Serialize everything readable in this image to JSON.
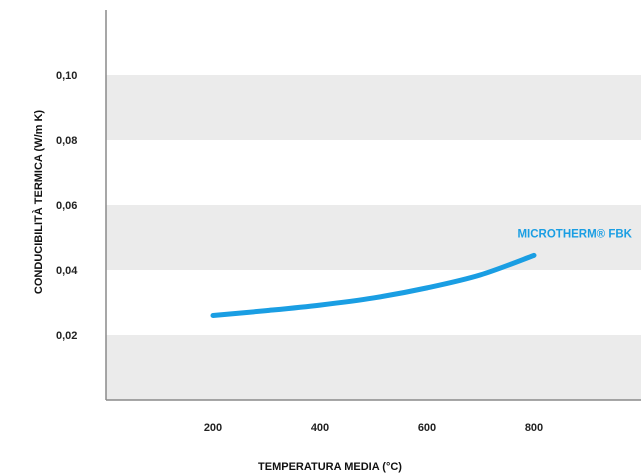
{
  "chart_data": {
    "type": "line",
    "xlabel": "TEMPERATURA MEDIA (°C)",
    "ylabel": "CONDUCIBILITÀ TERMICA (W/m K)",
    "xlim": [
      0,
      1000
    ],
    "ylim": [
      0,
      0.12
    ],
    "x_ticks": [
      "200",
      "400",
      "600",
      "800"
    ],
    "y_ticks": [
      "0,02",
      "0,04",
      "0,06",
      "0,08",
      "0,10"
    ],
    "grid": "alternating horizontal bands",
    "legend": "inline label near end of series",
    "series": [
      {
        "name": "MICROTHERM® FBK",
        "color": "#1a9ee3",
        "x": [
          200,
          300,
          400,
          500,
          600,
          700,
          800
        ],
        "y": [
          0.026,
          0.0275,
          0.0292,
          0.0314,
          0.0345,
          0.0385,
          0.0445
        ]
      }
    ]
  }
}
